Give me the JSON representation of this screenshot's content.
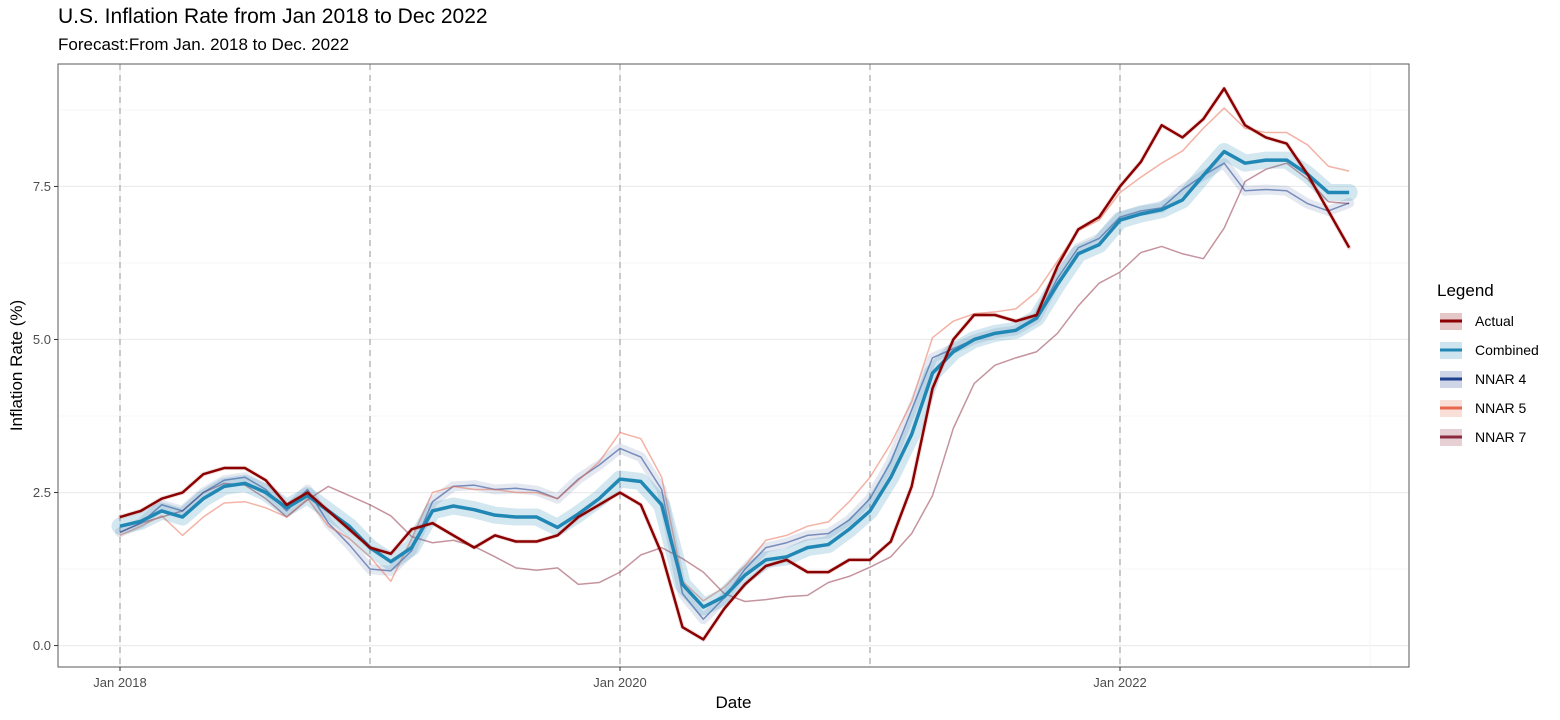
{
  "chart_data": {
    "type": "line",
    "title": "U.S. Inflation Rate from Jan 2018 to Dec 2022",
    "subtitle": "Forecast:From Jan. 2018 to Dec. 2022",
    "xlabel": "Date",
    "ylabel": "Inflation Rate (%)",
    "x_start": "2018-01",
    "x_end": "2022-12",
    "x_ticks": [
      "Jan 2018",
      "Jan 2020",
      "Jan 2022"
    ],
    "y_ticks": [
      "0.0",
      "2.5",
      "5.0",
      "7.5"
    ],
    "ylim": [
      -0.35,
      9.5
    ],
    "vertical_reference_lines": [
      "2018-01",
      "2019-01",
      "2020-01",
      "2021-01",
      "2022-01"
    ],
    "grid": true,
    "legend_title": "Legend",
    "legend_position": "right",
    "series": [
      {
        "name": "Actual",
        "color": "#8b0000",
        "values": [
          2.1,
          2.2,
          2.4,
          2.5,
          2.8,
          2.9,
          2.9,
          2.7,
          2.3,
          2.5,
          2.2,
          1.9,
          1.6,
          1.5,
          1.9,
          2.0,
          1.8,
          1.6,
          1.8,
          1.7,
          1.7,
          1.8,
          2.1,
          2.3,
          2.5,
          2.3,
          1.5,
          0.3,
          0.1,
          0.6,
          1.0,
          1.3,
          1.4,
          1.2,
          1.2,
          1.4,
          1.4,
          1.7,
          2.6,
          4.2,
          5.0,
          5.4,
          5.4,
          5.3,
          5.4,
          6.2,
          6.8,
          7.0,
          7.5,
          7.9,
          8.5,
          8.3,
          8.6,
          9.1,
          8.5,
          8.3,
          8.2,
          7.7,
          7.1,
          6.5
        ]
      },
      {
        "name": "Combined",
        "color": "#2188b5",
        "values": [
          1.95,
          2.03,
          2.2,
          2.1,
          2.4,
          2.6,
          2.65,
          2.5,
          2.25,
          2.45,
          2.2,
          1.95,
          1.6,
          1.37,
          1.6,
          2.2,
          2.28,
          2.22,
          2.13,
          2.1,
          2.1,
          1.93,
          2.15,
          2.4,
          2.72,
          2.68,
          2.3,
          1.0,
          0.63,
          0.8,
          1.15,
          1.4,
          1.45,
          1.6,
          1.65,
          1.9,
          2.2,
          2.75,
          3.45,
          4.45,
          4.8,
          5.0,
          5.1,
          5.15,
          5.35,
          5.9,
          6.4,
          6.55,
          6.95,
          7.05,
          7.12,
          7.28,
          7.68,
          8.07,
          7.88,
          7.93,
          7.93,
          7.7,
          7.4,
          7.4
        ]
      },
      {
        "name": "NNAR 4",
        "color": "#1f3f8f",
        "values": [
          1.85,
          2.0,
          2.3,
          2.2,
          2.5,
          2.7,
          2.75,
          2.55,
          2.2,
          2.55,
          2.0,
          1.65,
          1.25,
          1.22,
          1.55,
          2.35,
          2.6,
          2.62,
          2.55,
          2.57,
          2.53,
          2.4,
          2.72,
          2.95,
          3.22,
          3.08,
          2.55,
          0.85,
          0.43,
          0.78,
          1.25,
          1.6,
          1.68,
          1.8,
          1.83,
          2.05,
          2.4,
          3.0,
          3.85,
          4.7,
          4.85,
          5.0,
          5.1,
          5.15,
          5.35,
          6.0,
          6.5,
          6.65,
          7.0,
          7.1,
          7.15,
          7.45,
          7.68,
          7.88,
          7.43,
          7.45,
          7.43,
          7.22,
          7.1,
          7.23
        ]
      },
      {
        "name": "NNAR 5",
        "color": "#e8674d",
        "values": [
          1.8,
          1.95,
          2.12,
          1.8,
          2.1,
          2.33,
          2.35,
          2.25,
          2.1,
          2.4,
          1.95,
          1.75,
          1.45,
          1.05,
          1.75,
          2.5,
          2.6,
          2.55,
          2.55,
          2.5,
          2.5,
          2.4,
          2.7,
          3.0,
          3.48,
          3.38,
          2.75,
          1.05,
          0.73,
          0.95,
          1.3,
          1.72,
          1.8,
          1.95,
          2.02,
          2.35,
          2.75,
          3.3,
          3.98,
          5.03,
          5.3,
          5.42,
          5.45,
          5.5,
          5.78,
          6.28,
          6.78,
          6.95,
          7.4,
          7.65,
          7.88,
          8.08,
          8.45,
          8.78,
          8.45,
          8.38,
          8.38,
          8.18,
          7.83,
          7.75
        ]
      },
      {
        "name": "NNAR 7",
        "color": "#8b2a3d",
        "values": [
          1.85,
          2.0,
          2.1,
          2.2,
          2.5,
          2.65,
          2.62,
          2.4,
          2.1,
          2.38,
          2.6,
          2.45,
          2.3,
          2.12,
          1.78,
          1.68,
          1.72,
          1.62,
          1.45,
          1.27,
          1.23,
          1.27,
          1.0,
          1.03,
          1.2,
          1.48,
          1.6,
          1.42,
          1.2,
          0.85,
          0.72,
          0.75,
          0.8,
          0.82,
          1.03,
          1.13,
          1.28,
          1.45,
          1.83,
          2.45,
          3.55,
          4.28,
          4.58,
          4.7,
          4.8,
          5.1,
          5.55,
          5.92,
          6.1,
          6.42,
          6.52,
          6.4,
          6.32,
          6.82,
          7.58,
          7.78,
          7.88,
          7.62,
          7.25,
          7.22
        ]
      }
    ]
  }
}
